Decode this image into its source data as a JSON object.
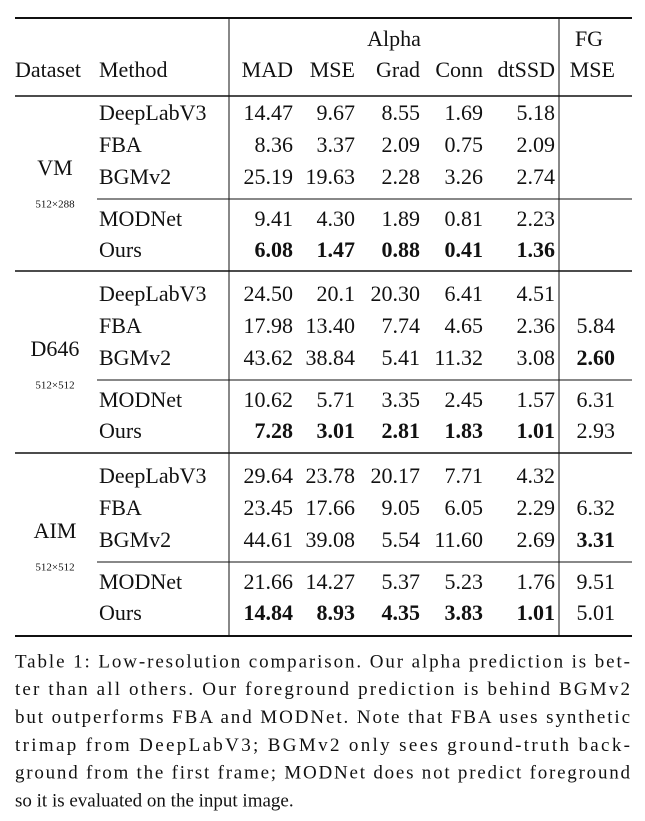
{
  "table": {
    "header": {
      "group_alpha": "Alpha",
      "group_fg": "FG",
      "columns": [
        "Dataset",
        "Method",
        "MAD",
        "MSE",
        "Grad",
        "Conn",
        "dtSSD",
        "MSE"
      ]
    },
    "datasets": [
      {
        "name": "VM",
        "resolution": "512×288",
        "rows": [
          {
            "method": "DeepLabV3",
            "values": [
              "14.47",
              "9.67",
              "8.55",
              "1.69",
              "5.18"
            ]
          },
          {
            "method": "FBA",
            "values": [
              "8.36",
              "3.37",
              "2.09",
              "0.75",
              "2.09"
            ]
          },
          {
            "method": "BGMv2",
            "values": [
              "25.19",
              "19.63",
              "2.28",
              "3.26",
              "2.74"
            ]
          },
          {
            "method": "MODNet",
            "values": [
              "9.41",
              "4.30",
              "1.89",
              "0.81",
              "2.23"
            ]
          },
          {
            "method": "Ours",
            "values": [
              "6.08",
              "1.47",
              "0.88",
              "0.41",
              "1.36"
            ]
          }
        ]
      },
      {
        "name": "D646",
        "resolution": "512×512",
        "rows": [
          {
            "method": "DeepLabV3",
            "values": [
              "24.50",
              "20.1",
              "20.30",
              "6.41",
              "4.51"
            ]
          },
          {
            "method": "FBA",
            "values": [
              "17.98",
              "13.40",
              "7.74",
              "4.65",
              "2.36",
              "5.84"
            ]
          },
          {
            "method": "BGMv2",
            "values": [
              "43.62",
              "38.84",
              "5.41",
              "11.32",
              "3.08",
              "2.60"
            ]
          },
          {
            "method": "MODNet",
            "values": [
              "10.62",
              "5.71",
              "3.35",
              "2.45",
              "1.57",
              "6.31"
            ]
          },
          {
            "method": "Ours",
            "values": [
              "7.28",
              "3.01",
              "2.81",
              "1.83",
              "1.01",
              "2.93"
            ]
          }
        ]
      },
      {
        "name": "AIM",
        "resolution": "512×512",
        "rows": [
          {
            "method": "DeepLabV3",
            "values": [
              "29.64",
              "23.78",
              "20.17",
              "7.71",
              "4.32"
            ]
          },
          {
            "method": "FBA",
            "values": [
              "23.45",
              "17.66",
              "9.05",
              "6.05",
              "2.29",
              "6.32"
            ]
          },
          {
            "method": "BGMv2",
            "values": [
              "44.61",
              "39.08",
              "5.54",
              "11.60",
              "2.69",
              "3.31"
            ]
          },
          {
            "method": "MODNet",
            "values": [
              "21.66",
              "14.27",
              "5.37",
              "5.23",
              "1.76",
              "9.51"
            ]
          },
          {
            "method": "Ours",
            "values": [
              "14.84",
              "8.93",
              "4.35",
              "3.83",
              "1.01",
              "5.01"
            ]
          }
        ]
      }
    ]
  },
  "caption": [
    "Table 1: Low-resolution comparison. Our alpha prediction is bet-",
    "ter than all others. Our foreground prediction is behind BGMv2",
    "but outperforms FBA and MODNet. Note that FBA uses synthetic",
    "trimap from DeepLabV3; BGMv2 only sees ground-truth back-",
    "ground from the first frame; MODNet does not predict foreground",
    "so it is evaluated on the input image."
  ]
}
